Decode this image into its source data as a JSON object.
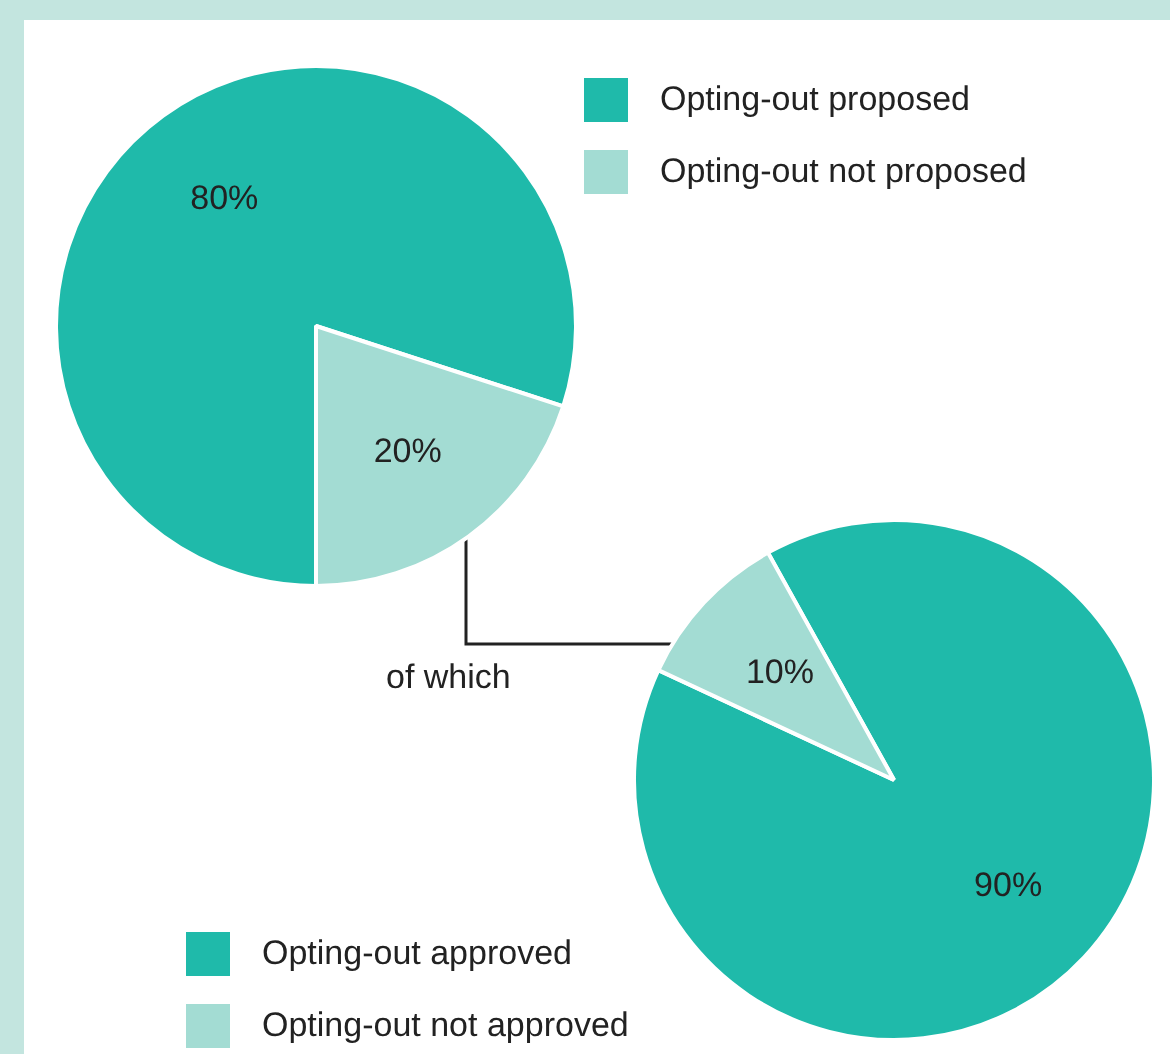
{
  "chart_data": [
    {
      "type": "pie",
      "categories": [
        "Opting-out proposed",
        "Opting-out not proposed"
      ],
      "values": [
        80,
        20
      ],
      "colors": [
        "#1fbaaa",
        "#a3dcd3"
      ],
      "value_labels": [
        "80%",
        "20%"
      ],
      "legend": "top right"
    },
    {
      "type": "pie",
      "categories": [
        "Opting-out approved",
        "Opting-out not approved"
      ],
      "values": [
        90,
        10
      ],
      "colors": [
        "#1fbaaa",
        "#a3dcd3"
      ],
      "value_labels": [
        "90%",
        "10%"
      ],
      "legend": "bottom left",
      "annotations": [
        "of which"
      ]
    }
  ]
}
